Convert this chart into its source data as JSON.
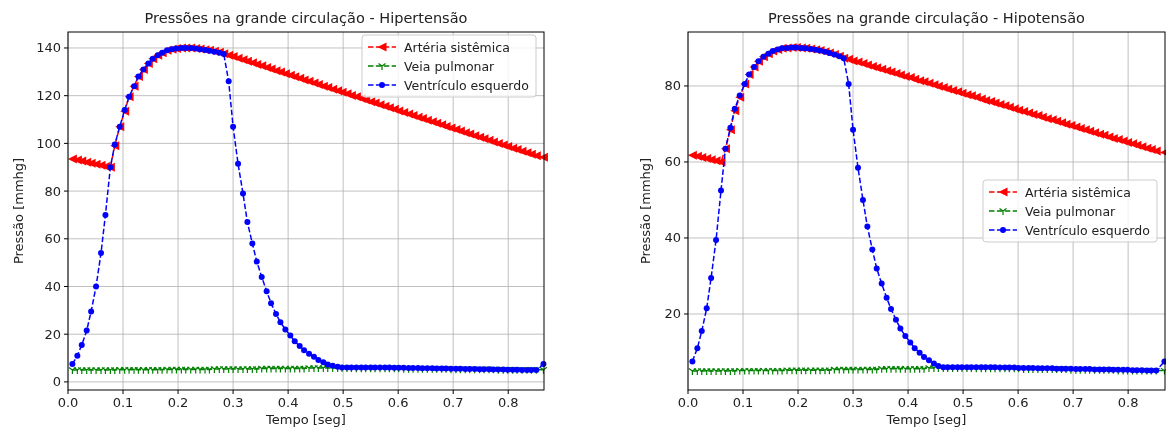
{
  "chart_data": [
    {
      "type": "line",
      "title": "Pressões na grande circulação - Hipertensão",
      "xlabel": "Tempo [seg]",
      "ylabel": "Pressão [mmhg]",
      "xlim": [
        0,
        0.865
      ],
      "ylim": [
        -3.4,
        146.7
      ],
      "xticks": [
        {
          "value": 0,
          "label": "0.0"
        },
        0.1,
        0.2,
        0.3,
        0.4,
        0.5,
        0.6,
        0.7,
        0.8
      ],
      "yticks": [
        0,
        20,
        40,
        60,
        80,
        100,
        120,
        140
      ],
      "grid": true,
      "legend": "top right",
      "line_style": "dashed",
      "x": [
        0.008,
        0.017,
        0.025,
        0.034,
        0.042,
        0.051,
        0.06,
        0.068,
        0.077,
        0.085,
        0.094,
        0.103,
        0.111,
        0.12,
        0.128,
        0.137,
        0.146,
        0.154,
        0.163,
        0.171,
        0.18,
        0.189,
        0.197,
        0.206,
        0.214,
        0.223,
        0.232,
        0.24,
        0.249,
        0.257,
        0.266,
        0.275,
        0.283,
        0.292,
        0.3,
        0.309,
        0.318,
        0.326,
        0.335,
        0.343,
        0.352,
        0.361,
        0.369,
        0.378,
        0.386,
        0.395,
        0.404,
        0.412,
        0.421,
        0.429,
        0.438,
        0.447,
        0.455,
        0.464,
        0.472,
        0.481,
        0.49,
        0.498,
        0.507,
        0.515,
        0.524,
        0.533,
        0.541,
        0.55,
        0.558,
        0.567,
        0.576,
        0.584,
        0.593,
        0.601,
        0.61,
        0.619,
        0.627,
        0.636,
        0.644,
        0.653,
        0.662,
        0.67,
        0.679,
        0.687,
        0.696,
        0.705,
        0.713,
        0.722,
        0.73,
        0.739,
        0.748,
        0.756,
        0.765,
        0.773,
        0.782,
        0.791,
        0.799,
        0.808,
        0.816,
        0.825,
        0.834,
        0.842,
        0.851,
        0.864
      ],
      "series": [
        {
          "name": "Artéria sistêmica",
          "color": "#ff0000",
          "marker": "triangle",
          "values": [
            93.5,
            93,
            92.6,
            92.1,
            91.7,
            91.2,
            90.8,
            90.3,
            90,
            99,
            107,
            113.5,
            119.5,
            124,
            128,
            131,
            133.5,
            135.5,
            137,
            138,
            139,
            139.5,
            139.8,
            140,
            140,
            140,
            139.8,
            139.6,
            139.3,
            139,
            138.6,
            138.2,
            137.6,
            137,
            136.4,
            135.7,
            135.1,
            134.4,
            133.8,
            133.1,
            132.5,
            131.8,
            131.2,
            130.5,
            129.9,
            129.2,
            128.6,
            127.9,
            127.3,
            126.6,
            126,
            125.3,
            124.7,
            124,
            123.4,
            122.7,
            122.1,
            121.4,
            120.8,
            120.1,
            119.5,
            118.8,
            118.2,
            117.5,
            116.9,
            116.2,
            115.6,
            114.9,
            114.3,
            113.6,
            113,
            112.3,
            111.7,
            111,
            110.4,
            109.7,
            109.1,
            108.4,
            107.8,
            107.1,
            106.5,
            105.8,
            105.2,
            104.5,
            103.9,
            103.2,
            102.6,
            101.9,
            101.3,
            100.6,
            100,
            99.3,
            98.7,
            98,
            97.4,
            96.7,
            96.1,
            95.4,
            94.8,
            94.2
          ]
        },
        {
          "name": "Veia pulmonar",
          "color": "#008000",
          "marker": "cross",
          "values": [
            5,
            5,
            5,
            5,
            5,
            5,
            5,
            5,
            5,
            5,
            5.1,
            5.1,
            5.1,
            5.1,
            5.1,
            5.1,
            5.1,
            5.1,
            5.1,
            5.1,
            5.2,
            5.2,
            5.2,
            5.2,
            5.2,
            5.2,
            5.2,
            5.2,
            5.2,
            5.2,
            5.4,
            5.4,
            5.4,
            5.4,
            5.4,
            5.4,
            5.4,
            5.4,
            5.4,
            5.4,
            5.6,
            5.6,
            5.6,
            5.6,
            5.6,
            5.6,
            5.6,
            5.6,
            5.6,
            5.6,
            5.8,
            5.8,
            5.8,
            5.8,
            5.8,
            5.8,
            5.8,
            5.8,
            5.8,
            5.8,
            5.7,
            5.7,
            5.7,
            5.7,
            5.7,
            5.7,
            5.7,
            5.7,
            5.7,
            5.7,
            5.5,
            5.5,
            5.5,
            5.5,
            5.5,
            5.5,
            5.5,
            5.5,
            5.5,
            5.5,
            5.3,
            5.3,
            5.3,
            5.3,
            5.3,
            5.3,
            5.3,
            5.3,
            5.3,
            5.3,
            5.1,
            5.1,
            5.1,
            5.1,
            5.1,
            5.1,
            5.1,
            5.1,
            5.1,
            5.1
          ]
        },
        {
          "name": "Ventrículo esquerdo",
          "color": "#0000ff",
          "marker": "circle",
          "values": [
            7.5,
            11,
            15.5,
            21.5,
            29.5,
            40,
            54,
            70,
            90,
            99.5,
            107,
            114,
            119.5,
            124,
            128,
            131,
            133.5,
            135.5,
            137,
            138,
            139,
            139.5,
            139.8,
            140,
            140,
            140,
            139.8,
            139.5,
            139.2,
            138.8,
            138.4,
            138,
            137.5,
            126,
            107,
            91.5,
            79,
            67,
            58,
            50.5,
            44,
            38,
            33,
            28.5,
            25,
            22,
            19.5,
            17,
            15,
            13.3,
            11.8,
            10.5,
            9.2,
            8.2,
            7.3,
            6.8,
            6.3,
            6,
            6,
            6,
            6,
            6,
            6,
            6,
            6,
            6,
            6,
            6,
            5.9,
            5.9,
            5.9,
            5.8,
            5.8,
            5.8,
            5.7,
            5.7,
            5.7,
            5.6,
            5.6,
            5.6,
            5.5,
            5.5,
            5.5,
            5.4,
            5.4,
            5.4,
            5.3,
            5.3,
            5.3,
            5.2,
            5.2,
            5.2,
            5.1,
            5.1,
            5.1,
            5,
            5,
            5,
            5,
            7.5
          ]
        }
      ]
    },
    {
      "type": "line",
      "title": "Pressões na grande circulação - Hipotensão",
      "xlabel": "Tempo [seg]",
      "ylabel": "Pressão [mmhg]",
      "xlim": [
        0,
        0.867
      ],
      "ylim": [
        0,
        94.2
      ],
      "xticks": [
        {
          "value": 0,
          "label": "0.0"
        },
        0.1,
        0.2,
        0.3,
        0.4,
        0.5,
        0.6,
        0.7,
        0.8
      ],
      "yticks": [
        20,
        40,
        60,
        80
      ],
      "grid": true,
      "legend": "right",
      "line_style": "dashed",
      "x": [
        0.008,
        0.017,
        0.025,
        0.034,
        0.042,
        0.051,
        0.06,
        0.068,
        0.077,
        0.085,
        0.094,
        0.103,
        0.111,
        0.12,
        0.128,
        0.137,
        0.146,
        0.154,
        0.163,
        0.171,
        0.18,
        0.189,
        0.197,
        0.206,
        0.214,
        0.223,
        0.232,
        0.24,
        0.249,
        0.257,
        0.266,
        0.275,
        0.283,
        0.292,
        0.3,
        0.309,
        0.318,
        0.326,
        0.335,
        0.343,
        0.352,
        0.361,
        0.369,
        0.378,
        0.386,
        0.395,
        0.404,
        0.412,
        0.421,
        0.429,
        0.438,
        0.447,
        0.455,
        0.464,
        0.472,
        0.481,
        0.49,
        0.498,
        0.507,
        0.515,
        0.524,
        0.533,
        0.541,
        0.55,
        0.558,
        0.567,
        0.576,
        0.584,
        0.593,
        0.601,
        0.61,
        0.619,
        0.627,
        0.636,
        0.644,
        0.653,
        0.662,
        0.67,
        0.679,
        0.687,
        0.696,
        0.705,
        0.713,
        0.722,
        0.73,
        0.739,
        0.748,
        0.756,
        0.765,
        0.773,
        0.782,
        0.791,
        0.799,
        0.808,
        0.816,
        0.825,
        0.834,
        0.842,
        0.851,
        0.866
      ],
      "series": [
        {
          "name": "Artéria sistêmica",
          "color": "#ff0000",
          "marker": "triangle",
          "values": [
            61.8,
            61.5,
            61.2,
            60.9,
            60.6,
            60.3,
            60,
            63.5,
            68.5,
            73.5,
            77,
            80.5,
            83,
            85,
            86.5,
            87.7,
            88.5,
            89.2,
            89.6,
            89.9,
            90,
            90.1,
            90.1,
            90,
            89.9,
            89.7,
            89.5,
            89.3,
            89,
            88.7,
            88.3,
            87.8,
            87.3,
            87,
            86.6,
            86.3,
            85.9,
            85.5,
            85.1,
            84.8,
            84.4,
            84,
            83.7,
            83.3,
            82.9,
            82.5,
            82.2,
            81.8,
            81.4,
            81.1,
            80.7,
            80.3,
            79.9,
            79.6,
            79.2,
            78.8,
            78.5,
            78.1,
            77.7,
            77.4,
            77,
            76.6,
            76.2,
            75.9,
            75.5,
            75.1,
            74.8,
            74.4,
            74,
            73.6,
            73.3,
            72.9,
            72.5,
            72.2,
            71.8,
            71.4,
            71.1,
            70.7,
            70.3,
            69.9,
            69.6,
            69.2,
            68.8,
            68.5,
            68.1,
            67.7,
            67.3,
            67,
            66.6,
            66.2,
            65.9,
            65.5,
            65.1,
            64.8,
            64.4,
            64,
            63.6,
            63.3,
            62.9,
            62.5
          ]
        },
        {
          "name": "Veia pulmonar",
          "color": "#008000",
          "marker": "cross",
          "values": [
            5,
            5,
            5,
            5,
            5,
            5,
            5,
            5,
            5,
            5,
            5.1,
            5.1,
            5.1,
            5.1,
            5.1,
            5.1,
            5.1,
            5.1,
            5.1,
            5.1,
            5.2,
            5.2,
            5.2,
            5.2,
            5.2,
            5.2,
            5.2,
            5.2,
            5.2,
            5.2,
            5.4,
            5.4,
            5.4,
            5.4,
            5.4,
            5.4,
            5.4,
            5.4,
            5.4,
            5.4,
            5.6,
            5.6,
            5.6,
            5.6,
            5.6,
            5.6,
            5.6,
            5.6,
            5.6,
            5.6,
            5.8,
            5.8,
            5.8,
            5.8,
            5.8,
            5.8,
            5.8,
            5.8,
            5.8,
            5.8,
            5.7,
            5.7,
            5.7,
            5.7,
            5.7,
            5.7,
            5.7,
            5.7,
            5.7,
            5.7,
            5.5,
            5.5,
            5.5,
            5.5,
            5.5,
            5.5,
            5.5,
            5.5,
            5.5,
            5.5,
            5.3,
            5.3,
            5.3,
            5.3,
            5.3,
            5.3,
            5.3,
            5.3,
            5.3,
            5.3,
            5.1,
            5.1,
            5.1,
            5.1,
            5.1,
            5.1,
            5.1,
            5.1,
            5.1,
            5.1
          ]
        },
        {
          "name": "Ventrículo esquerdo",
          "color": "#0000ff",
          "marker": "circle",
          "values": [
            7.5,
            11,
            15.5,
            21.5,
            29.5,
            39.5,
            52.5,
            63.5,
            69,
            74,
            77.5,
            80.5,
            83,
            85,
            86.5,
            87.7,
            88.5,
            89.2,
            89.6,
            89.9,
            90,
            90.1,
            90.1,
            90,
            89.9,
            89.7,
            89.5,
            89.3,
            89,
            88.7,
            88.3,
            87.8,
            87.3,
            80.5,
            68.5,
            58.5,
            50,
            43,
            37,
            32,
            28,
            24.3,
            21.3,
            18.5,
            16.2,
            14.2,
            12.5,
            11,
            9.8,
            8.7,
            7.8,
            7,
            6.3,
            6,
            6,
            6,
            6,
            6,
            6,
            6,
            6,
            6,
            6,
            6,
            6,
            5.9,
            5.9,
            5.9,
            5.9,
            5.8,
            5.8,
            5.8,
            5.8,
            5.7,
            5.7,
            5.7,
            5.7,
            5.6,
            5.6,
            5.6,
            5.6,
            5.5,
            5.5,
            5.5,
            5.5,
            5.4,
            5.4,
            5.4,
            5.4,
            5.3,
            5.3,
            5.3,
            5.3,
            5.2,
            5.2,
            5.2,
            5.1,
            5.1,
            5.1,
            7.5
          ]
        }
      ]
    }
  ]
}
